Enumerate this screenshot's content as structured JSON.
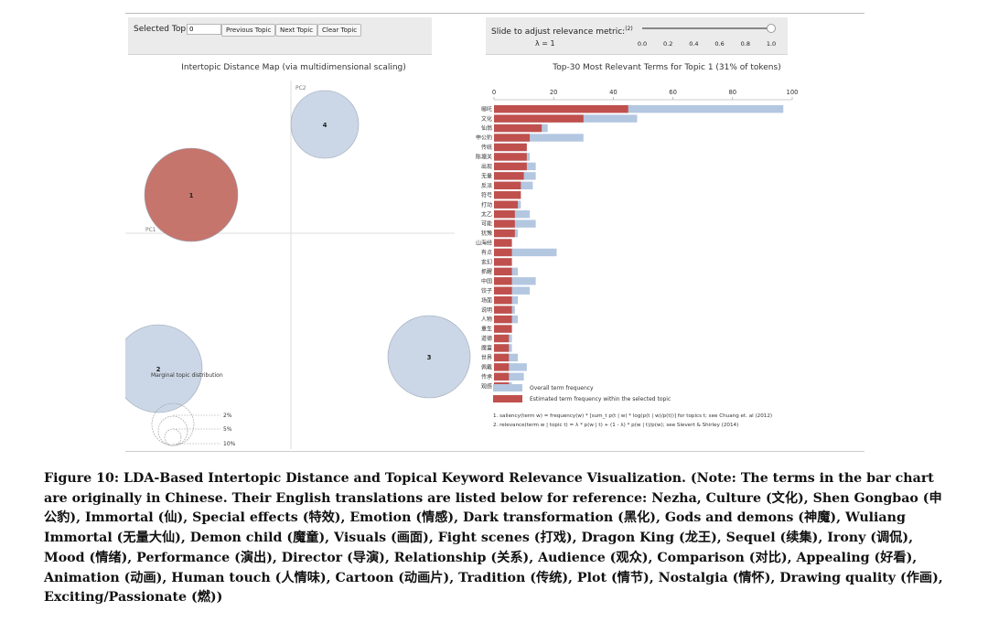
{
  "controls": {
    "selected_topic_label": "Selected Topic:",
    "selected_topic_value": "0",
    "previous_button": "Previous Topic",
    "next_button": "Next Topic",
    "clear_button": "Clear Topic",
    "slider_label": "Slide to adjust relevance metric:",
    "slider_footnote": "(2)",
    "lambda_label": "λ = 1",
    "slider_value": 1.0,
    "slider_ticks": [
      "0.0",
      "0.2",
      "0.4",
      "0.6",
      "0.8",
      "1.0"
    ]
  },
  "chart_data": [
    {
      "type": "scatter",
      "title": "Intertopic Distance Map (via multidimensional scaling)",
      "xlabel": "PC1",
      "ylabel": "PC2",
      "topics": [
        {
          "id": "1",
          "size_pct": 31,
          "color": "#c0665c"
        },
        {
          "id": "2",
          "size_pct": 24,
          "color": "#c5d3e3"
        },
        {
          "id": "3",
          "size_pct": 23,
          "color": "#c5d3e3"
        },
        {
          "id": "4",
          "size_pct": 22,
          "color": "#c5d3e3"
        }
      ],
      "legend": {
        "title": "Marginal topic distribution",
        "entries": [
          "2%",
          "5%",
          "10%"
        ]
      }
    },
    {
      "type": "bar",
      "title": "Top-30 Most Relevant Terms for Topic 1 (31% of tokens)",
      "xlim": [
        0,
        100
      ],
      "xticks": [
        "0",
        "20",
        "40",
        "60",
        "80",
        "100"
      ],
      "categories": [
        "哪吒",
        "文化",
        "仙翁",
        "申公豹",
        "传统",
        "陈塘关",
        "出现",
        "无量",
        "反派",
        "符号",
        "打动",
        "太乙",
        "可能",
        "犹豫",
        "山海经",
        "有点",
        "玄幻",
        "抓醒",
        "中国",
        "饺子",
        "场面",
        "说明",
        "人物",
        "重生",
        "道德",
        "魔童",
        "世界",
        "佩戴",
        "传承",
        "观感"
      ],
      "series": [
        {
          "name": "Overall term frequency",
          "color": "#b3c7e1",
          "values": [
            97,
            48,
            18,
            30,
            11,
            12,
            14,
            14,
            13,
            9,
            9,
            12,
            14,
            8,
            6,
            21,
            6,
            8,
            14,
            12,
            8,
            7,
            8,
            6,
            6,
            6,
            8,
            11,
            10,
            6
          ]
        },
        {
          "name": "Estimated term frequency within the selected topic",
          "color": "#c0504d",
          "values": [
            45,
            30,
            16,
            12,
            11,
            11,
            11,
            10,
            9,
            9,
            8,
            7,
            7,
            7,
            6,
            6,
            6,
            6,
            6,
            6,
            6,
            6,
            6,
            6,
            5,
            5,
            5,
            5,
            5,
            5
          ]
        }
      ],
      "footnotes": [
        "1. saliency(term w) = frequency(w) * [sum_t p(t | w) * log(p(t | w)/p(t))] for topics t; see Chuang et. al (2012)",
        "2. relevance(term w | topic t) = λ * p(w | t) + (1 - λ) * p(w | t)/p(w); see Sievert & Shirley (2014)"
      ]
    }
  ],
  "caption": "Figure 10: LDA-Based Intertopic Distance and Topical Keyword Relevance Visualization. (Note: The terms in the bar chart are originally in Chinese. Their English translations are listed below for reference: Nezha, Culture (文化), Shen Gongbao (申公豹), Immortal (仙), Special effects (特效), Emotion (情感), Dark transformation (黑化), Gods and demons (神魔), Wuliang Immortal (无量大仙), Demon child (魔童), Visuals (画面), Fight scenes (打戏), Dragon King (龙王), Sequel (续集), Irony (调侃), Mood (情绪), Performance (演出), Director (导演), Relationship (关系), Audience (观众), Comparison (对比), Appealing (好看), Animation (动画), Human touch (人情味), Cartoon (动画片), Tradition (传统), Plot (情节), Nostalgia (情怀), Drawing quality (作画), Exciting/Passionate (燃))"
}
